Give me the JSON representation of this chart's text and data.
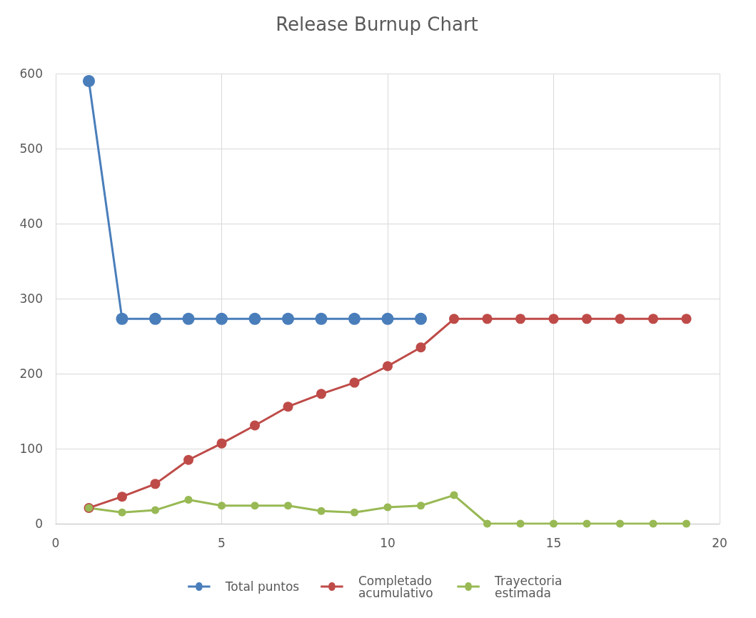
{
  "chart_data": {
    "type": "line",
    "title": "Release Burnup Chart",
    "x": [
      1,
      2,
      3,
      4,
      5,
      6,
      7,
      8,
      9,
      10,
      11,
      12,
      13,
      14,
      15,
      16,
      17,
      18,
      19
    ],
    "series": [
      {
        "name": "Total puntos",
        "color": "#4a7ebb",
        "x": [
          1,
          2,
          3,
          4,
          5,
          6,
          7,
          8,
          9,
          10,
          11
        ],
        "values": [
          590,
          273,
          273,
          273,
          273,
          273,
          273,
          273,
          273,
          273,
          273
        ]
      },
      {
        "name": "Completado acumulativo",
        "color": "#be4b48",
        "values": [
          21,
          36,
          53,
          85,
          107,
          131,
          156,
          173,
          188,
          210,
          235,
          273,
          273,
          273,
          273,
          273,
          273,
          273,
          273
        ]
      },
      {
        "name": "Trayectoria estimada",
        "color": "#98b954",
        "values": [
          21,
          15,
          18,
          32,
          24,
          24,
          24,
          17,
          15,
          22,
          24,
          38,
          0,
          0,
          0,
          0,
          0,
          0,
          0
        ]
      }
    ],
    "xlim": [
      0,
      20
    ],
    "xticks": [
      0,
      5,
      10,
      15,
      20
    ],
    "ylim": [
      0,
      600
    ],
    "yticks": [
      0,
      100,
      200,
      300,
      400,
      500,
      600
    ],
    "grid": true,
    "legend": "bottom",
    "marker": "circle",
    "line_style": "solid"
  }
}
